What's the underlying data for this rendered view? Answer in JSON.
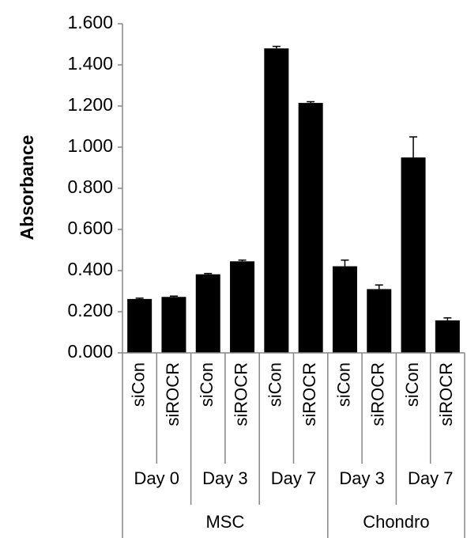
{
  "chart_data": {
    "type": "bar",
    "ylabel": "Absorbance",
    "ylim": [
      0,
      1.6
    ],
    "y_ticks": [
      "0.000",
      "0.200",
      "0.400",
      "0.600",
      "0.800",
      "1.000",
      "1.200",
      "1.400",
      "1.600"
    ],
    "y_tick_values": [
      0,
      0.2,
      0.4,
      0.6,
      0.8,
      1.0,
      1.2,
      1.4,
      1.6
    ],
    "grid": false,
    "bar_color": "#000000",
    "categories": [
      "siCon",
      "siROCR",
      "siCon",
      "siROCR",
      "siCon",
      "siROCR",
      "siCon",
      "siROCR",
      "siCon",
      "siROCR"
    ],
    "values": [
      0.262,
      0.272,
      0.382,
      0.445,
      1.48,
      1.215,
      0.421,
      0.31,
      0.95,
      0.158
    ],
    "errors": [
      0.004,
      0.004,
      0.004,
      0.006,
      0.01,
      0.006,
      0.03,
      0.02,
      0.1,
      0.012
    ],
    "group_labels": [
      {
        "label": "Day 0",
        "start": 0,
        "end": 2
      },
      {
        "label": "Day 3",
        "start": 2,
        "end": 4
      },
      {
        "label": "Day 7",
        "start": 4,
        "end": 6
      },
      {
        "label": "Day 3",
        "start": 6,
        "end": 8
      },
      {
        "label": "Day 7",
        "start": 8,
        "end": 10
      }
    ],
    "super_group_labels": [
      {
        "label": "MSC",
        "start": 0,
        "end": 6
      },
      {
        "label": "Chondro",
        "start": 6,
        "end": 10
      }
    ]
  }
}
